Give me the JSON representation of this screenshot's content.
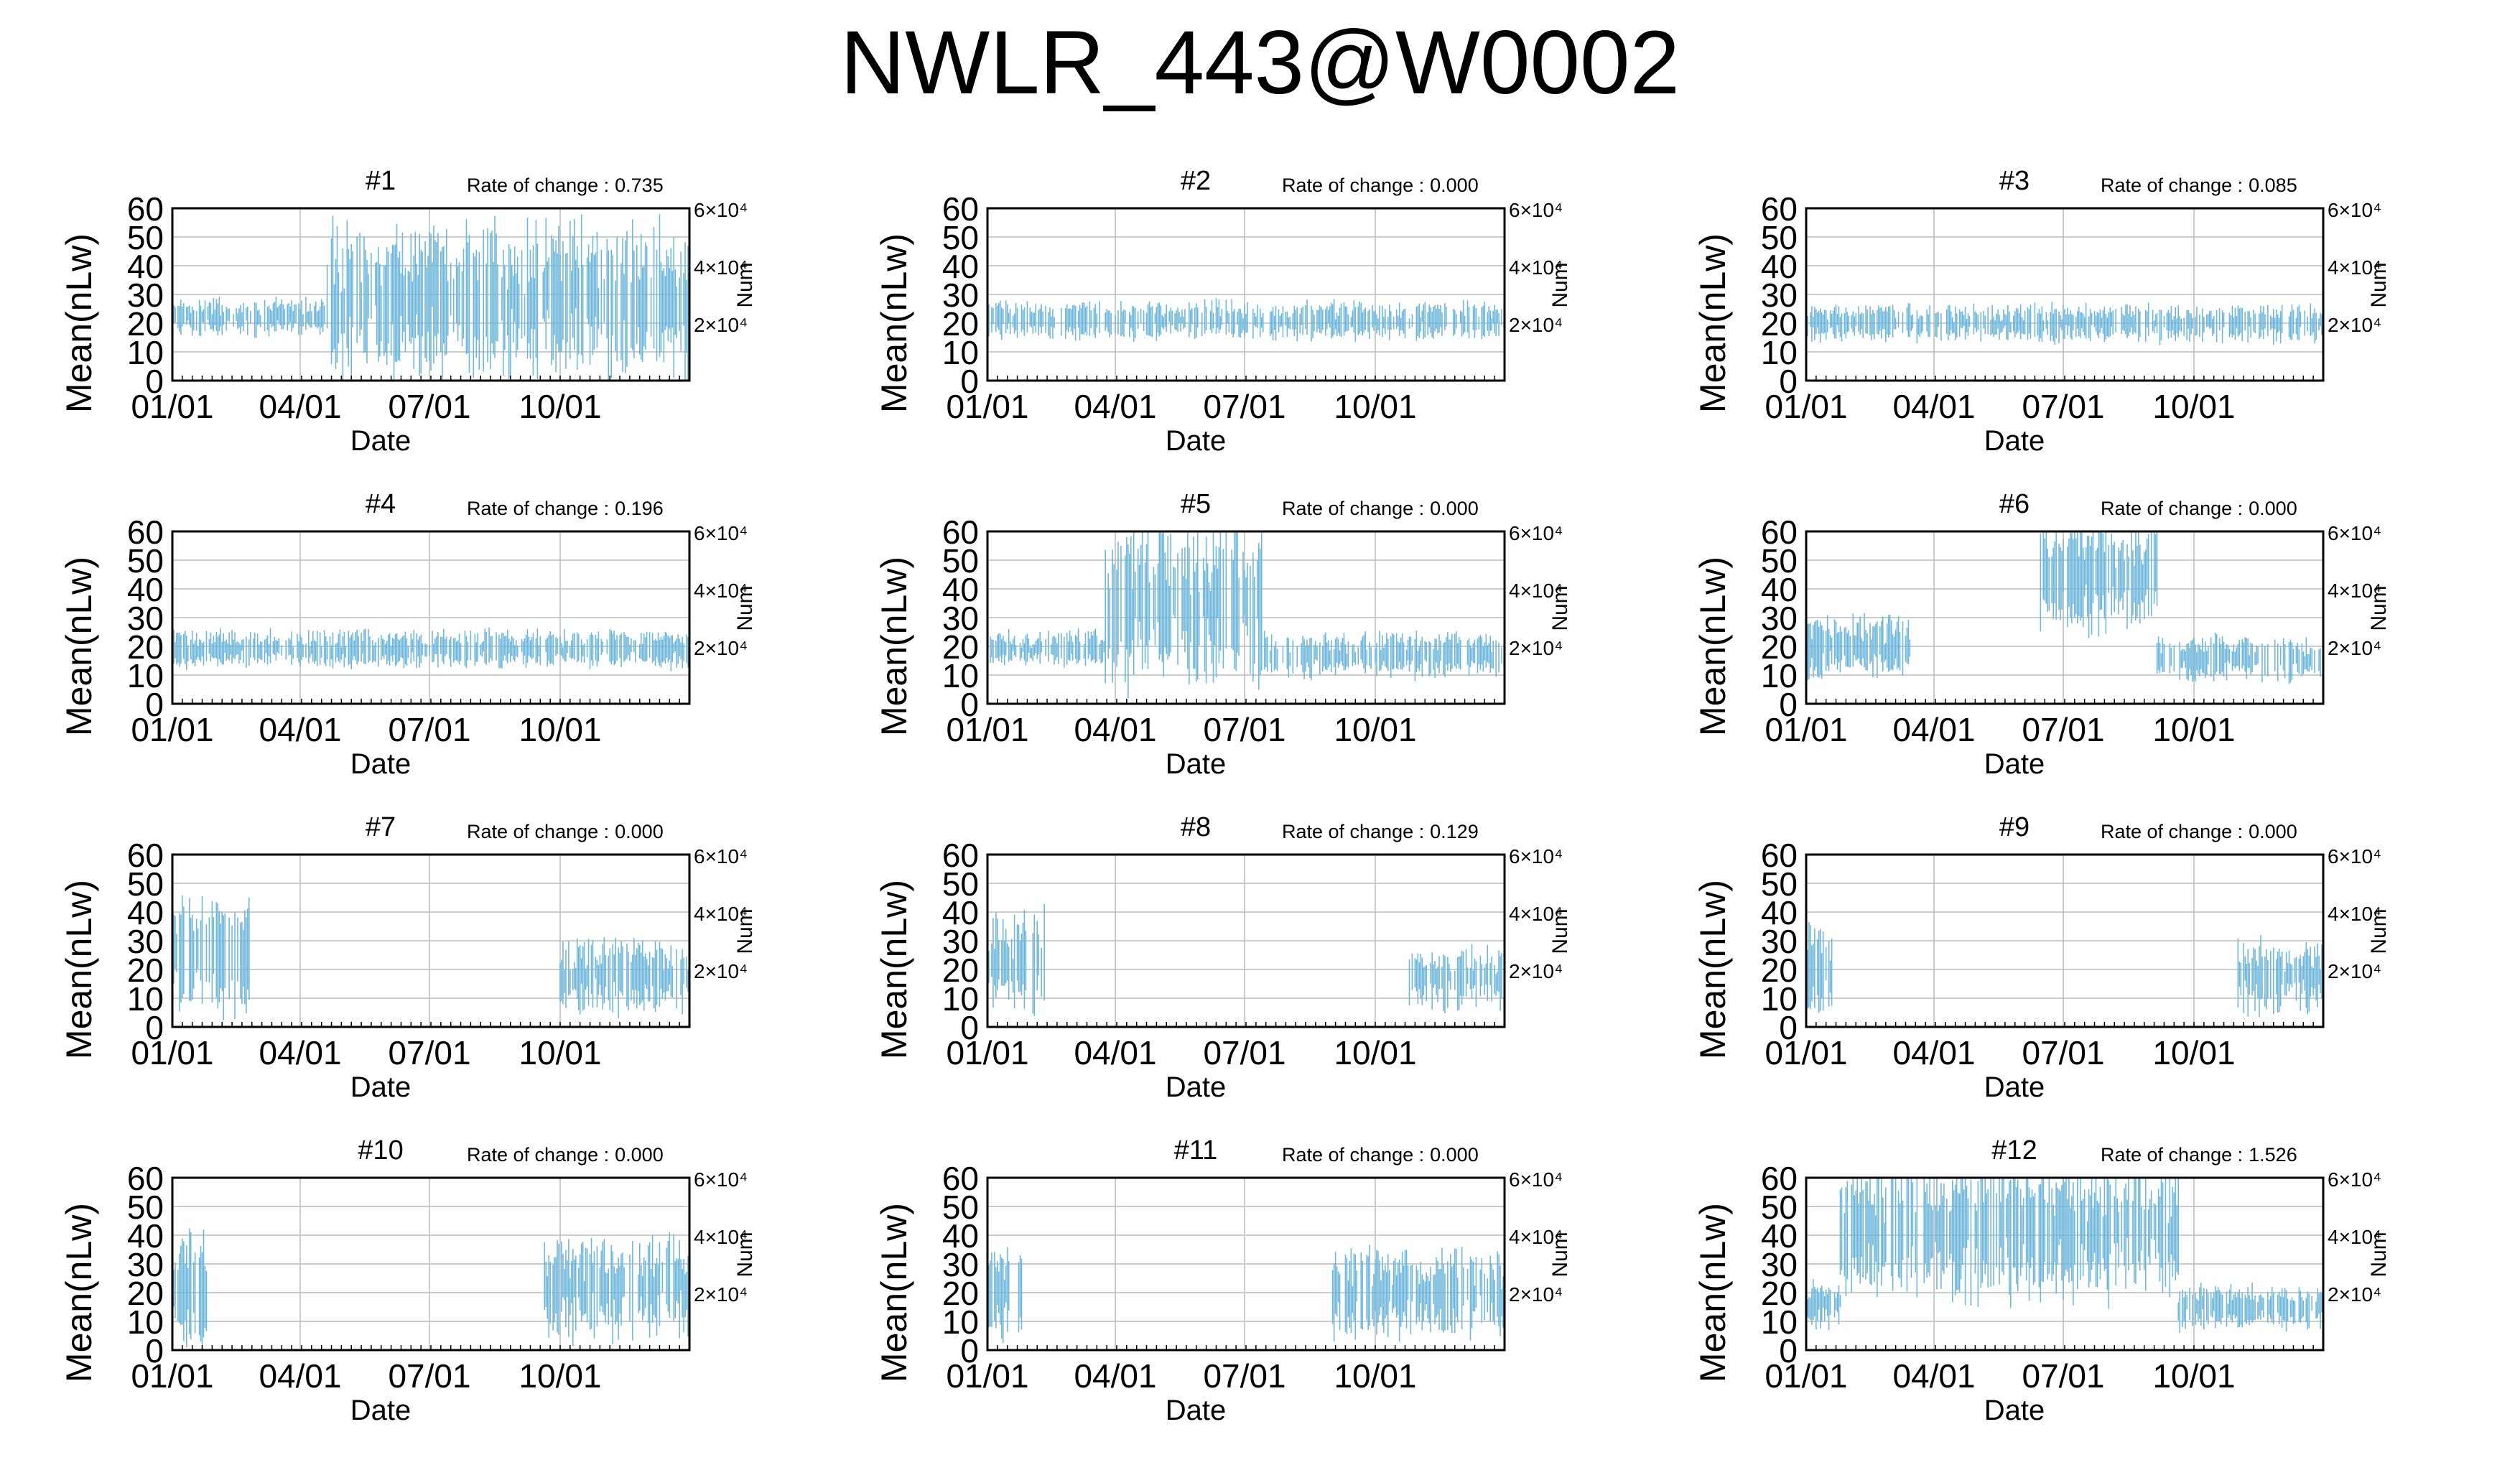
{
  "title": "NWLR_443@W0002",
  "colors": {
    "series": "#6fb8dc",
    "grid": "#bbbbbb",
    "axis": "#000000"
  },
  "chart_data": {
    "type": "line",
    "xlabel": "Date",
    "ylabel": "Mean(nLw)",
    "y2label": "Num",
    "ylim": [
      0,
      60
    ],
    "yticks": [
      "0",
      "10",
      "20",
      "30",
      "40",
      "50",
      "60"
    ],
    "xticks": [
      "01/01",
      "04/01",
      "07/01",
      "10/01"
    ],
    "y2ticks": [
      "2×10⁴",
      "4×10⁴",
      "6×10⁴"
    ],
    "rate_label": "Rate of change :",
    "grid": true,
    "panels": [
      {
        "name": "#1",
        "rate": "0.735",
        "segments": [
          {
            "from": "01/01",
            "to": "04/20",
            "mean": 22,
            "half": 5
          },
          {
            "from": "04/20",
            "to": "12/31",
            "mean": 28,
            "half": 20
          }
        ]
      },
      {
        "name": "#2",
        "rate": "0.000",
        "segments": [
          {
            "from": "01/01",
            "to": "12/31",
            "mean": 21,
            "half": 5
          }
        ]
      },
      {
        "name": "#3",
        "rate": "0.085",
        "segments": [
          {
            "from": "01/01",
            "to": "12/31",
            "mean": 20,
            "half": 5
          }
        ]
      },
      {
        "name": "#4",
        "rate": "0.196",
        "segments": [
          {
            "from": "01/01",
            "to": "12/31",
            "mean": 19,
            "half": 5
          }
        ]
      },
      {
        "name": "#5",
        "rate": "0.000",
        "segments": [
          {
            "from": "01/01",
            "to": "03/25",
            "mean": 19,
            "half": 5
          },
          {
            "from": "03/25",
            "to": "07/15",
            "mean": 35,
            "half": 22
          },
          {
            "from": "07/15",
            "to": "12/31",
            "mean": 17,
            "half": 6
          }
        ]
      },
      {
        "name": "#6",
        "rate": "0.000",
        "segments": [
          {
            "from": "01/01",
            "to": "03/15",
            "mean": 20,
            "half": 8
          },
          {
            "from": "06/15",
            "to": "09/05",
            "mean": 45,
            "half": 15
          },
          {
            "from": "09/05",
            "to": "12/31",
            "mean": 16,
            "half": 6
          }
        ]
      },
      {
        "name": "#7",
        "rate": "0.000",
        "segments": [
          {
            "from": "01/01",
            "to": "02/25",
            "mean": 25,
            "half": 15
          },
          {
            "from": "10/01",
            "to": "12/31",
            "mean": 18,
            "half": 10
          }
        ]
      },
      {
        "name": "#8",
        "rate": "0.129",
        "segments": [
          {
            "from": "01/01",
            "to": "02/10",
            "mean": 22,
            "half": 15
          },
          {
            "from": "10/25",
            "to": "12/31",
            "mean": 17,
            "half": 8
          }
        ]
      },
      {
        "name": "#9",
        "rate": "0.000",
        "segments": [
          {
            "from": "01/01",
            "to": "01/20",
            "mean": 20,
            "half": 12
          },
          {
            "from": "11/01",
            "to": "12/31",
            "mean": 18,
            "half": 10
          }
        ]
      },
      {
        "name": "#10",
        "rate": "0.000",
        "segments": [
          {
            "from": "01/01",
            "to": "01/25",
            "mean": 20,
            "half": 15
          },
          {
            "from": "09/20",
            "to": "12/31",
            "mean": 22,
            "half": 14
          }
        ]
      },
      {
        "name": "#11",
        "rate": "0.000",
        "segments": [
          {
            "from": "01/01",
            "to": "01/25",
            "mean": 20,
            "half": 12
          },
          {
            "from": "09/01",
            "to": "12/31",
            "mean": 20,
            "half": 12
          }
        ]
      },
      {
        "name": "#12",
        "rate": "1.526",
        "segments": [
          {
            "from": "01/01",
            "to": "01/25",
            "mean": 16,
            "half": 6
          },
          {
            "from": "01/25",
            "to": "09/20",
            "mean": 42,
            "half": 18
          },
          {
            "from": "09/20",
            "to": "12/31",
            "mean": 15,
            "half": 6
          }
        ]
      }
    ]
  }
}
